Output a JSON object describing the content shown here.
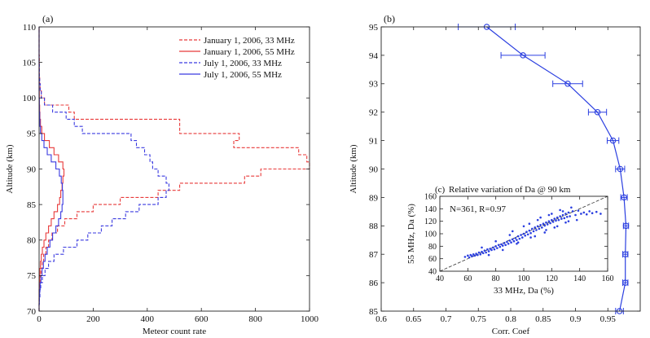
{
  "chart_data": [
    {
      "type": "line",
      "panel_label": "(a)",
      "xlabel": "Meteor count rate",
      "ylabel": "Altitude (km)",
      "xlim": [
        0,
        1000
      ],
      "ylim": [
        70,
        110
      ],
      "xticks": [
        0,
        200,
        400,
        600,
        800,
        1000
      ],
      "yticks": [
        70,
        75,
        80,
        85,
        90,
        95,
        100,
        105,
        110
      ],
      "grid": false,
      "legend_position": "top-right",
      "series": [
        {
          "name": "January 1, 2006, 33 MHz",
          "color": "#e83a3a",
          "dash": "dashed",
          "altitude": [
            70,
            71,
            72,
            73,
            74,
            75,
            76,
            77,
            78,
            79,
            80,
            81,
            82,
            83,
            84,
            85,
            86,
            87,
            88,
            89,
            90,
            91,
            92,
            93,
            94,
            95,
            96,
            97,
            98,
            99,
            100,
            101,
            102,
            103,
            104,
            105,
            106,
            107,
            108,
            109,
            110
          ],
          "count": [
            0,
            0,
            1,
            2,
            4,
            7,
            11,
            17,
            25,
            35,
            48,
            68,
            95,
            140,
            200,
            300,
            440,
            520,
            760,
            820,
            1000,
            990,
            960,
            720,
            740,
            520,
            520,
            130,
            110,
            20,
            8,
            4,
            2,
            1,
            1,
            1,
            0,
            0,
            0,
            0,
            0
          ]
        },
        {
          "name": "January 1, 2006, 55 MHz",
          "color": "#e83a3a",
          "dash": "solid",
          "altitude": [
            70,
            71,
            72,
            73,
            74,
            75,
            76,
            77,
            78,
            79,
            80,
            81,
            82,
            83,
            84,
            85,
            86,
            87,
            88,
            89,
            90,
            91,
            92,
            93,
            94,
            95,
            96,
            97,
            98,
            99,
            100,
            101,
            102,
            103,
            104,
            105,
            106,
            107,
            108,
            109,
            110
          ],
          "count": [
            0,
            0,
            0,
            1,
            2,
            3,
            5,
            8,
            12,
            18,
            25,
            35,
            45,
            55,
            68,
            76,
            80,
            85,
            88,
            92,
            88,
            72,
            55,
            38,
            20,
            10,
            5,
            3,
            2,
            1,
            1,
            0,
            0,
            0,
            0,
            0,
            0,
            0,
            0,
            0,
            0
          ]
        },
        {
          "name": "July 1, 2006, 33 MHz",
          "color": "#3a3ae0",
          "dash": "dashed",
          "altitude": [
            70,
            71,
            72,
            73,
            74,
            75,
            76,
            77,
            78,
            79,
            80,
            81,
            82,
            83,
            84,
            85,
            86,
            87,
            88,
            89,
            90,
            91,
            92,
            93,
            94,
            95,
            96,
            97,
            98,
            99,
            100,
            101,
            102,
            103,
            104,
            105,
            106,
            107,
            108,
            109,
            110
          ],
          "count": [
            0,
            1,
            3,
            6,
            12,
            22,
            35,
            55,
            90,
            140,
            180,
            230,
            270,
            320,
            370,
            440,
            470,
            480,
            470,
            440,
            420,
            410,
            390,
            360,
            340,
            160,
            130,
            100,
            50,
            20,
            8,
            4,
            2,
            1,
            1,
            0,
            0,
            0,
            0,
            0,
            0
          ]
        },
        {
          "name": "July 1, 2006, 55 MHz",
          "color": "#3a3ae0",
          "dash": "solid",
          "altitude": [
            70,
            71,
            72,
            73,
            74,
            75,
            76,
            77,
            78,
            79,
            80,
            81,
            82,
            83,
            84,
            85,
            86,
            87,
            88,
            89,
            90,
            91,
            92,
            93,
            94,
            95,
            96,
            97,
            98,
            99,
            100,
            101,
            102,
            103,
            104,
            105,
            106,
            107,
            108,
            109,
            110
          ],
          "count": [
            0,
            1,
            2,
            4,
            7,
            11,
            16,
            22,
            30,
            40,
            50,
            62,
            72,
            80,
            85,
            88,
            88,
            86,
            82,
            75,
            62,
            45,
            30,
            18,
            10,
            5,
            3,
            2,
            1,
            1,
            0,
            0,
            0,
            0,
            0,
            0,
            0,
            0,
            0,
            0,
            0
          ]
        }
      ]
    },
    {
      "type": "line",
      "panel_label": "(b)",
      "xlabel": "Corr. Coef",
      "ylabel": "Altitude (km)",
      "xlim": [
        0.6,
        1.0
      ],
      "ylim": [
        85,
        95
      ],
      "xticks": [
        "0.6",
        "0.65",
        "0.7",
        "0.75",
        "0.8",
        "0.85",
        "0.9",
        "0.95"
      ],
      "yticks": [
        85,
        86,
        87,
        88,
        89,
        90,
        91,
        92,
        93,
        94,
        95
      ],
      "grid": false,
      "series": [
        {
          "color": "#2b3fe0",
          "marker": "circle",
          "altitude": [
            85,
            86,
            87,
            88,
            89,
            90,
            91,
            92,
            93,
            94,
            95
          ],
          "corr": [
            0.968,
            0.977,
            0.977,
            0.978,
            0.975,
            0.969,
            0.958,
            0.934,
            0.888,
            0.819,
            0.763
          ],
          "error": [
            0.006,
            0.004,
            0.004,
            0.004,
            0.005,
            0.007,
            0.009,
            0.014,
            0.023,
            0.034,
            0.044
          ]
        }
      ]
    },
    {
      "type": "scatter",
      "panel_label": "(c)",
      "title": "Relative variation of Da @ 90 km",
      "xlabel": "33 MHz, Da (%)",
      "ylabel": "55 MHz, Da (%)",
      "xlim": [
        40,
        160
      ],
      "ylim": [
        40,
        160
      ],
      "xticks": [
        40,
        60,
        80,
        100,
        120,
        140,
        160
      ],
      "yticks": [
        40,
        60,
        80,
        100,
        120,
        140,
        160
      ],
      "annotation": "N=361, R=0.97",
      "color": "#2b3fe0",
      "n_points": 361,
      "fit_line": {
        "style": "dashed",
        "from": [
          40,
          40
        ],
        "to": [
          160,
          160
        ]
      },
      "points": [
        [
          58,
          63
        ],
        [
          60,
          65
        ],
        [
          61,
          62
        ],
        [
          62,
          66
        ],
        [
          63,
          64
        ],
        [
          64,
          67
        ],
        [
          65,
          65
        ],
        [
          66,
          68
        ],
        [
          67,
          66
        ],
        [
          68,
          70
        ],
        [
          69,
          67
        ],
        [
          70,
          71
        ],
        [
          71,
          69
        ],
        [
          72,
          73
        ],
        [
          73,
          70
        ],
        [
          74,
          75
        ],
        [
          75,
          72
        ],
        [
          76,
          76
        ],
        [
          77,
          74
        ],
        [
          78,
          78
        ],
        [
          79,
          75
        ],
        [
          80,
          80
        ],
        [
          81,
          77
        ],
        [
          82,
          82
        ],
        [
          83,
          79
        ],
        [
          84,
          83
        ],
        [
          85,
          81
        ],
        [
          86,
          85
        ],
        [
          87,
          82
        ],
        [
          88,
          87
        ],
        [
          89,
          84
        ],
        [
          90,
          89
        ],
        [
          91,
          86
        ],
        [
          92,
          91
        ],
        [
          93,
          88
        ],
        [
          94,
          93
        ],
        [
          95,
          90
        ],
        [
          96,
          96
        ],
        [
          97,
          92
        ],
        [
          98,
          98
        ],
        [
          99,
          94
        ],
        [
          100,
          100
        ],
        [
          101,
          97
        ],
        [
          102,
          103
        ],
        [
          103,
          99
        ],
        [
          104,
          105
        ],
        [
          105,
          101
        ],
        [
          106,
          108
        ],
        [
          107,
          104
        ],
        [
          108,
          110
        ],
        [
          109,
          106
        ],
        [
          110,
          112
        ],
        [
          111,
          108
        ],
        [
          112,
          114
        ],
        [
          113,
          110
        ],
        [
          114,
          116
        ],
        [
          115,
          113
        ],
        [
          116,
          118
        ],
        [
          117,
          115
        ],
        [
          118,
          120
        ],
        [
          119,
          117
        ],
        [
          120,
          122
        ],
        [
          121,
          119
        ],
        [
          122,
          124
        ],
        [
          123,
          121
        ],
        [
          124,
          126
        ],
        [
          125,
          122
        ],
        [
          126,
          128
        ],
        [
          127,
          124
        ],
        [
          128,
          130
        ],
        [
          129,
          125
        ],
        [
          130,
          132
        ],
        [
          131,
          127
        ],
        [
          132,
          134
        ],
        [
          133,
          128
        ],
        [
          135,
          136
        ],
        [
          137,
          130
        ],
        [
          139,
          137
        ],
        [
          141,
          132
        ],
        [
          143,
          134
        ],
        [
          145,
          131
        ],
        [
          147,
          136
        ],
        [
          149,
          133
        ],
        [
          152,
          135
        ],
        [
          155,
          132
        ],
        [
          70,
          78
        ],
        [
          75,
          66
        ],
        [
          80,
          88
        ],
        [
          85,
          74
        ],
        [
          90,
          98
        ],
        [
          95,
          84
        ],
        [
          100,
          112
        ],
        [
          105,
          94
        ],
        [
          110,
          122
        ],
        [
          115,
          102
        ],
        [
          118,
          130
        ],
        [
          122,
          110
        ],
        [
          126,
          138
        ],
        [
          130,
          118
        ],
        [
          134,
          142
        ],
        [
          138,
          122
        ],
        [
          92,
          104
        ],
        [
          96,
          86
        ],
        [
          104,
          116
        ],
        [
          108,
          96
        ],
        [
          112,
          126
        ],
        [
          116,
          106
        ],
        [
          120,
          132
        ],
        [
          124,
          112
        ],
        [
          128,
          136
        ],
        [
          132,
          120
        ]
      ]
    }
  ]
}
